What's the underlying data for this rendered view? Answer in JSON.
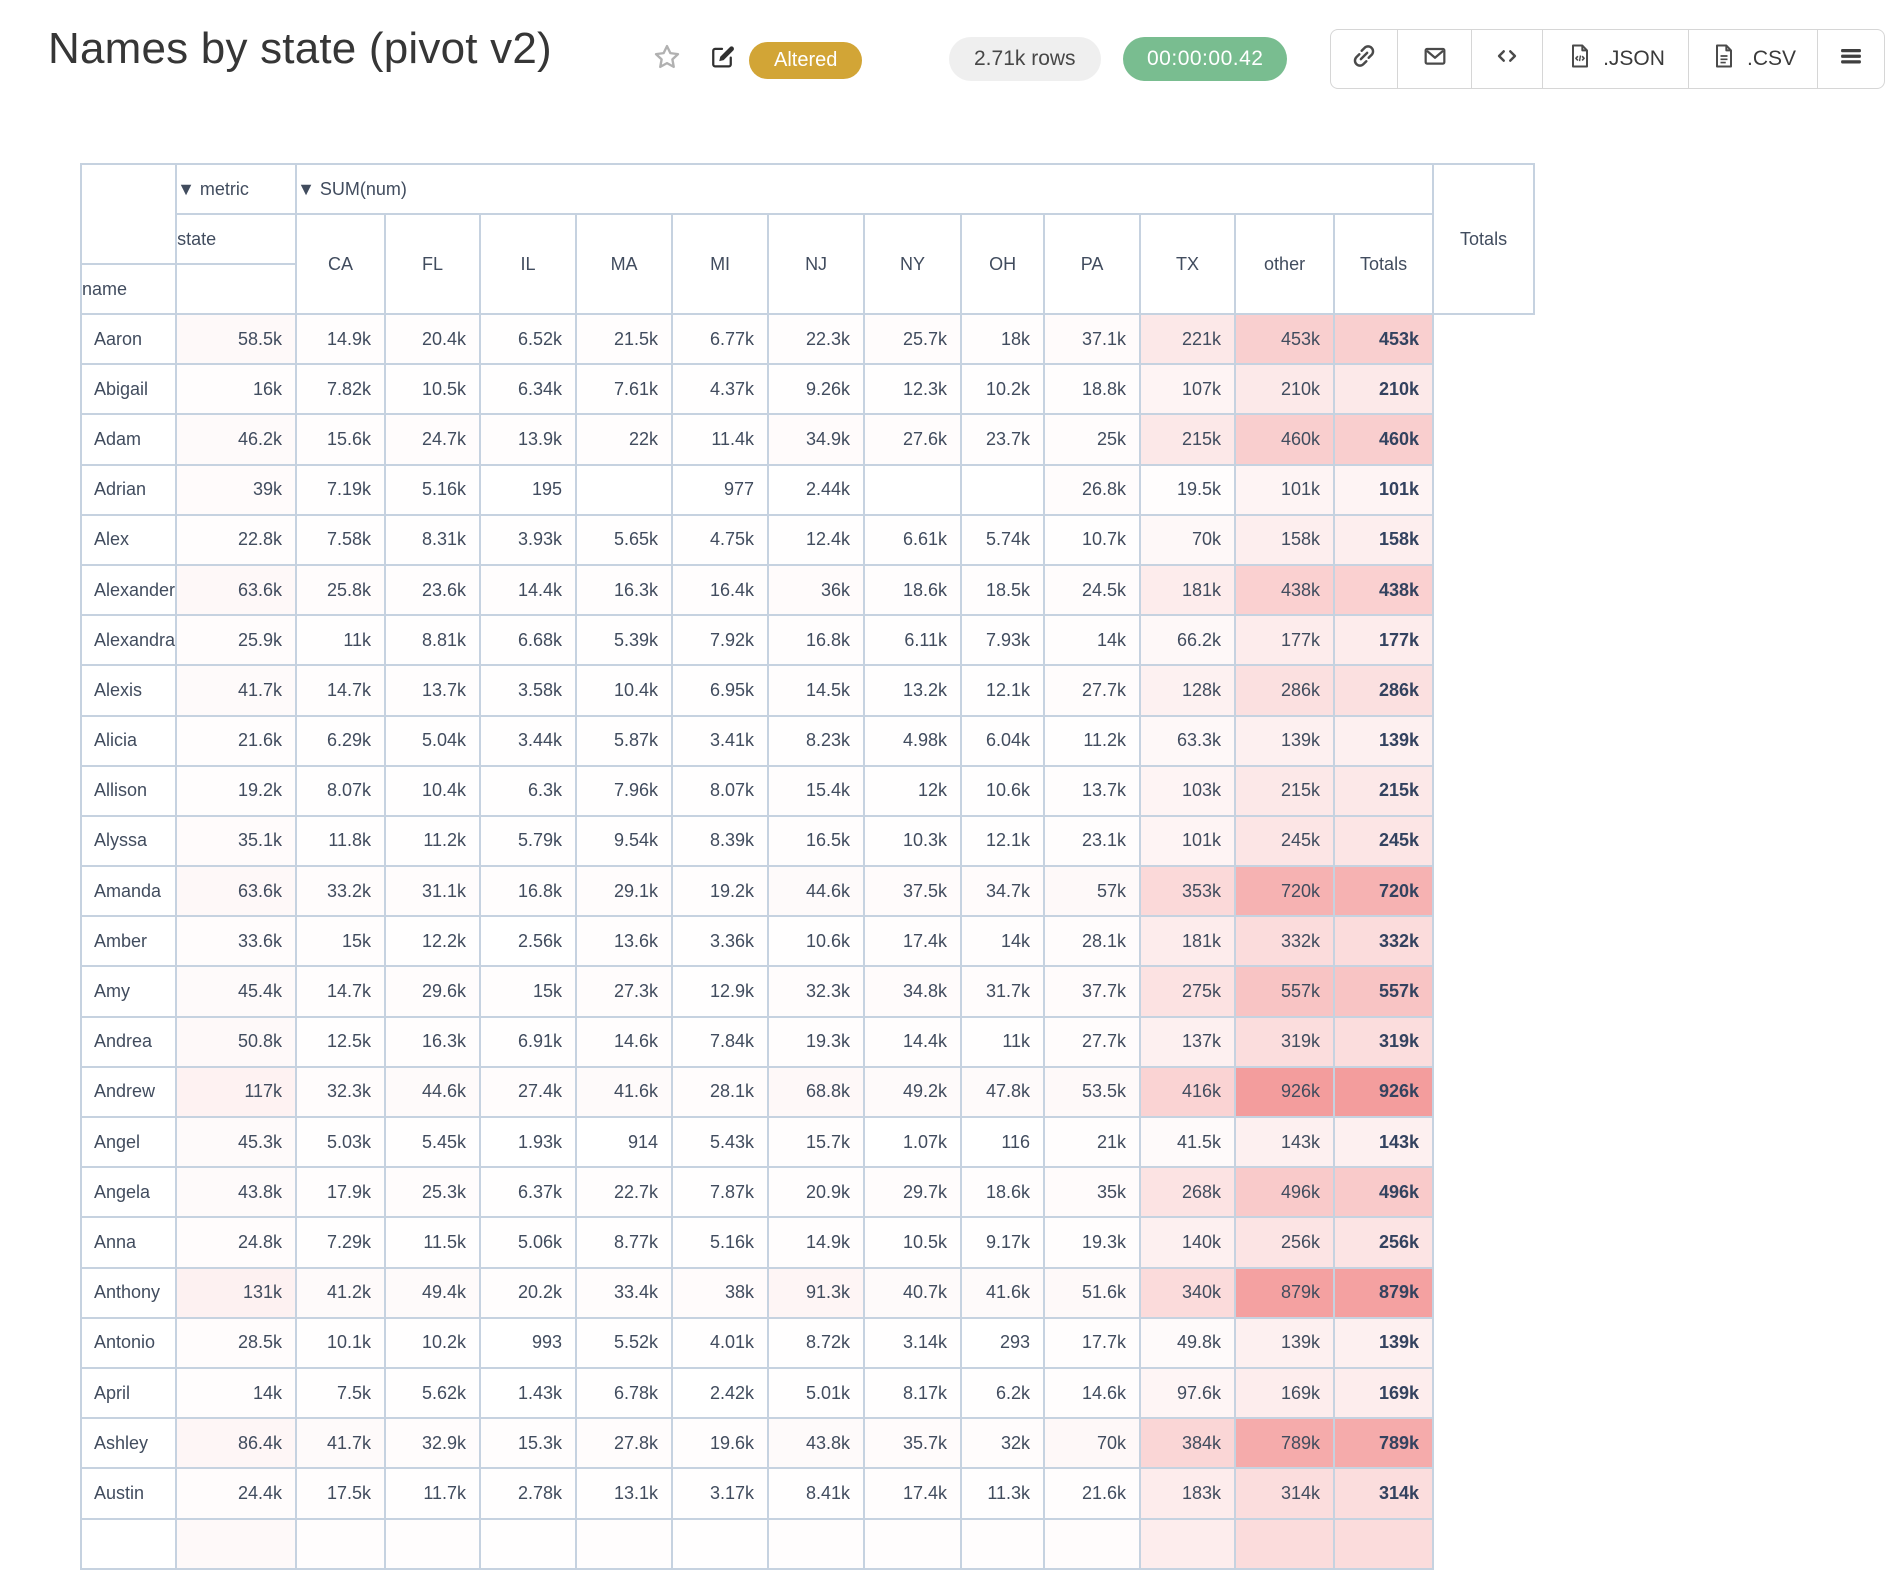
{
  "header": {
    "title": "Names by state (pivot v2)",
    "status_badge": "Altered",
    "rows_badge": "2.71k rows",
    "runtime_badge": "00:00:00.42",
    "json_label": ".JSON",
    "csv_label": ".CSV",
    "icons": {
      "favorite": "star-icon",
      "edit": "edit-icon",
      "share": "link-icon",
      "email": "envelope-icon",
      "embed": "code-icon",
      "json": "file-code-icon",
      "csv": "file-text-icon",
      "menu": "hamburger-icon"
    }
  },
  "colors": {
    "accent_gold": "#d2a536",
    "runtime_green": "#79bd90",
    "rows_pill_gray": "#efefef",
    "table_border": "#c6d2e0",
    "table_text": "#414c5e",
    "heatmap_base": "#ee6e6e"
  },
  "pivot": {
    "metric_label": "▼ metric",
    "sum_label": "▼ SUM(num)",
    "col_dim_label": "state",
    "row_dim_label": "name",
    "totals_label": "Totals",
    "columns": [
      "CA",
      "FL",
      "IL",
      "MA",
      "MI",
      "NJ",
      "NY",
      "OH",
      "PA",
      "TX",
      "other",
      "Totals"
    ],
    "heatmap": {
      "base_rgb": [
        238,
        110,
        110
      ],
      "max_value": 926000,
      "alpha_scale": 0.68
    },
    "rows": [
      {
        "name": "Aaron",
        "values": [
          "58.5k",
          "14.9k",
          "20.4k",
          "6.52k",
          "21.5k",
          "6.77k",
          "22.3k",
          "25.7k",
          "18k",
          "37.1k",
          "221k",
          "453k"
        ],
        "total": "453k"
      },
      {
        "name": "Abigail",
        "values": [
          "16k",
          "7.82k",
          "10.5k",
          "6.34k",
          "7.61k",
          "4.37k",
          "9.26k",
          "12.3k",
          "10.2k",
          "18.8k",
          "107k",
          "210k"
        ],
        "total": "210k"
      },
      {
        "name": "Adam",
        "values": [
          "46.2k",
          "15.6k",
          "24.7k",
          "13.9k",
          "22k",
          "11.4k",
          "34.9k",
          "27.6k",
          "23.7k",
          "25k",
          "215k",
          "460k"
        ],
        "total": "460k"
      },
      {
        "name": "Adrian",
        "values": [
          "39k",
          "7.19k",
          "5.16k",
          "195",
          "",
          "977",
          "2.44k",
          "",
          "",
          "26.8k",
          "19.5k",
          "101k"
        ],
        "total": "101k"
      },
      {
        "name": "Alex",
        "values": [
          "22.8k",
          "7.58k",
          "8.31k",
          "3.93k",
          "5.65k",
          "4.75k",
          "12.4k",
          "6.61k",
          "5.74k",
          "10.7k",
          "70k",
          "158k"
        ],
        "total": "158k"
      },
      {
        "name": "Alexander",
        "values": [
          "63.6k",
          "25.8k",
          "23.6k",
          "14.4k",
          "16.3k",
          "16.4k",
          "36k",
          "18.6k",
          "18.5k",
          "24.5k",
          "181k",
          "438k"
        ],
        "total": "438k"
      },
      {
        "name": "Alexandra",
        "values": [
          "25.9k",
          "11k",
          "8.81k",
          "6.68k",
          "5.39k",
          "7.92k",
          "16.8k",
          "6.11k",
          "7.93k",
          "14k",
          "66.2k",
          "177k"
        ],
        "total": "177k"
      },
      {
        "name": "Alexis",
        "values": [
          "41.7k",
          "14.7k",
          "13.7k",
          "3.58k",
          "10.4k",
          "6.95k",
          "14.5k",
          "13.2k",
          "12.1k",
          "27.7k",
          "128k",
          "286k"
        ],
        "total": "286k"
      },
      {
        "name": "Alicia",
        "values": [
          "21.6k",
          "6.29k",
          "5.04k",
          "3.44k",
          "5.87k",
          "3.41k",
          "8.23k",
          "4.98k",
          "6.04k",
          "11.2k",
          "63.3k",
          "139k"
        ],
        "total": "139k"
      },
      {
        "name": "Allison",
        "values": [
          "19.2k",
          "8.07k",
          "10.4k",
          "6.3k",
          "7.96k",
          "8.07k",
          "15.4k",
          "12k",
          "10.6k",
          "13.7k",
          "103k",
          "215k"
        ],
        "total": "215k"
      },
      {
        "name": "Alyssa",
        "values": [
          "35.1k",
          "11.8k",
          "11.2k",
          "5.79k",
          "9.54k",
          "8.39k",
          "16.5k",
          "10.3k",
          "12.1k",
          "23.1k",
          "101k",
          "245k"
        ],
        "total": "245k"
      },
      {
        "name": "Amanda",
        "values": [
          "63.6k",
          "33.2k",
          "31.1k",
          "16.8k",
          "29.1k",
          "19.2k",
          "44.6k",
          "37.5k",
          "34.7k",
          "57k",
          "353k",
          "720k"
        ],
        "total": "720k"
      },
      {
        "name": "Amber",
        "values": [
          "33.6k",
          "15k",
          "12.2k",
          "2.56k",
          "13.6k",
          "3.36k",
          "10.6k",
          "17.4k",
          "14k",
          "28.1k",
          "181k",
          "332k"
        ],
        "total": "332k"
      },
      {
        "name": "Amy",
        "values": [
          "45.4k",
          "14.7k",
          "29.6k",
          "15k",
          "27.3k",
          "12.9k",
          "32.3k",
          "34.8k",
          "31.7k",
          "37.7k",
          "275k",
          "557k"
        ],
        "total": "557k"
      },
      {
        "name": "Andrea",
        "values": [
          "50.8k",
          "12.5k",
          "16.3k",
          "6.91k",
          "14.6k",
          "7.84k",
          "19.3k",
          "14.4k",
          "11k",
          "27.7k",
          "137k",
          "319k"
        ],
        "total": "319k"
      },
      {
        "name": "Andrew",
        "values": [
          "117k",
          "32.3k",
          "44.6k",
          "27.4k",
          "41.6k",
          "28.1k",
          "68.8k",
          "49.2k",
          "47.8k",
          "53.5k",
          "416k",
          "926k"
        ],
        "total": "926k"
      },
      {
        "name": "Angel",
        "values": [
          "45.3k",
          "5.03k",
          "5.45k",
          "1.93k",
          "914",
          "5.43k",
          "15.7k",
          "1.07k",
          "116",
          "21k",
          "41.5k",
          "143k"
        ],
        "total": "143k"
      },
      {
        "name": "Angela",
        "values": [
          "43.8k",
          "17.9k",
          "25.3k",
          "6.37k",
          "22.7k",
          "7.87k",
          "20.9k",
          "29.7k",
          "18.6k",
          "35k",
          "268k",
          "496k"
        ],
        "total": "496k"
      },
      {
        "name": "Anna",
        "values": [
          "24.8k",
          "7.29k",
          "11.5k",
          "5.06k",
          "8.77k",
          "5.16k",
          "14.9k",
          "10.5k",
          "9.17k",
          "19.3k",
          "140k",
          "256k"
        ],
        "total": "256k"
      },
      {
        "name": "Anthony",
        "values": [
          "131k",
          "41.2k",
          "49.4k",
          "20.2k",
          "33.4k",
          "38k",
          "91.3k",
          "40.7k",
          "41.6k",
          "51.6k",
          "340k",
          "879k"
        ],
        "total": "879k"
      },
      {
        "name": "Antonio",
        "values": [
          "28.5k",
          "10.1k",
          "10.2k",
          "993",
          "5.52k",
          "4.01k",
          "8.72k",
          "3.14k",
          "293",
          "17.7k",
          "49.8k",
          "139k"
        ],
        "total": "139k"
      },
      {
        "name": "April",
        "values": [
          "14k",
          "7.5k",
          "5.62k",
          "1.43k",
          "6.78k",
          "2.42k",
          "5.01k",
          "8.17k",
          "6.2k",
          "14.6k",
          "97.6k",
          "169k"
        ],
        "total": "169k"
      },
      {
        "name": "Ashley",
        "values": [
          "86.4k",
          "41.7k",
          "32.9k",
          "15.3k",
          "27.8k",
          "19.6k",
          "43.8k",
          "35.7k",
          "32k",
          "70k",
          "384k",
          "789k"
        ],
        "total": "789k"
      },
      {
        "name": "Austin",
        "values": [
          "24.4k",
          "17.5k",
          "11.7k",
          "2.78k",
          "13.1k",
          "3.17k",
          "8.41k",
          "17.4k",
          "11.3k",
          "21.6k",
          "183k",
          "314k"
        ],
        "total": "314k"
      }
    ],
    "partial_row_alphas": [
      0.04,
      0.015,
      0.01,
      0.005,
      0.01,
      0.005,
      0.01,
      0.01,
      0.01,
      0.02,
      0.12,
      0.24,
      0.24
    ]
  }
}
